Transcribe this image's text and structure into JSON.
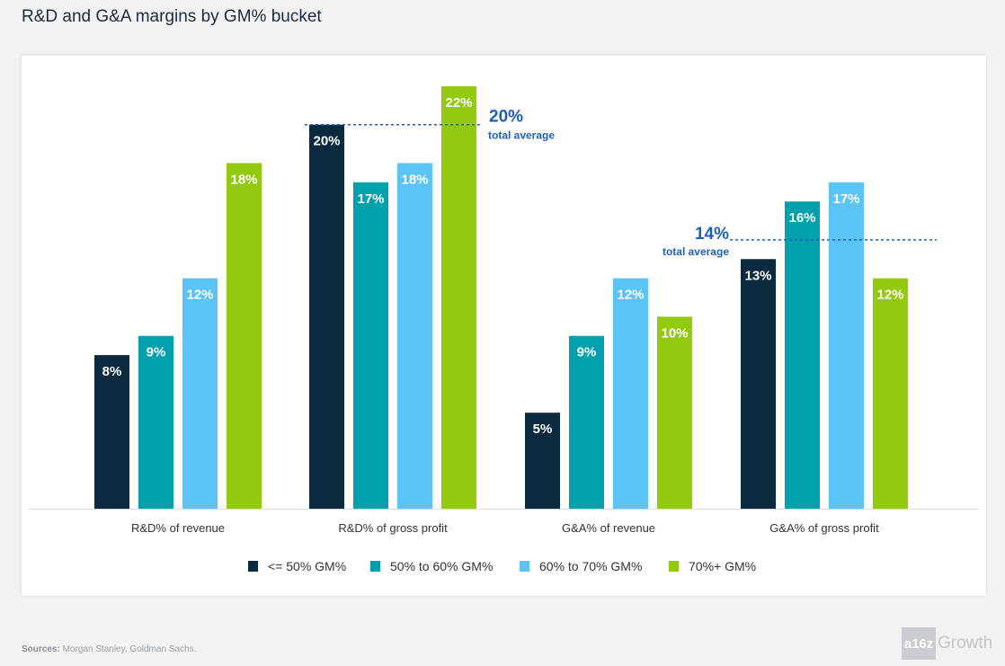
{
  "page": {
    "title": "R&D and G&A margins by GM% bucket",
    "sources_label": "Sources:",
    "sources_text": " Morgan Stanley, Goldman Sachs.",
    "logo_mark": "a16z",
    "logo_word": "Growth"
  },
  "chart_data": {
    "type": "bar",
    "title": "R&D and G&A margins by GM% bucket",
    "categories": [
      "R&D% of revenue",
      "R&D% of gross profit",
      "G&A% of revenue",
      "G&A% of gross profit"
    ],
    "series": [
      {
        "name": "<= 50% GM%",
        "color": "#0b2a40",
        "values": [
          8,
          20,
          5,
          13
        ]
      },
      {
        "name": "50% to 60% GM%",
        "color": "#00a0ac",
        "values": [
          9,
          17,
          9,
          16
        ]
      },
      {
        "name": "60% to 70% GM%",
        "color": "#5bc4f5",
        "values": [
          12,
          18,
          12,
          17
        ]
      },
      {
        "name": "70%+ GM%",
        "color": "#93c90e",
        "values": [
          18,
          22,
          10,
          12
        ]
      }
    ],
    "value_suffix": "%",
    "ylim": [
      0,
      22
    ],
    "legend_position": "bottom",
    "annotations": [
      {
        "category_index": 1,
        "value": 20,
        "label": "20%",
        "caption": "total average",
        "line_color": "#1f5fb5"
      },
      {
        "category_index": 3,
        "value": 14,
        "label": "14%",
        "caption": "total average",
        "line_color": "#1f5fb5"
      }
    ]
  }
}
